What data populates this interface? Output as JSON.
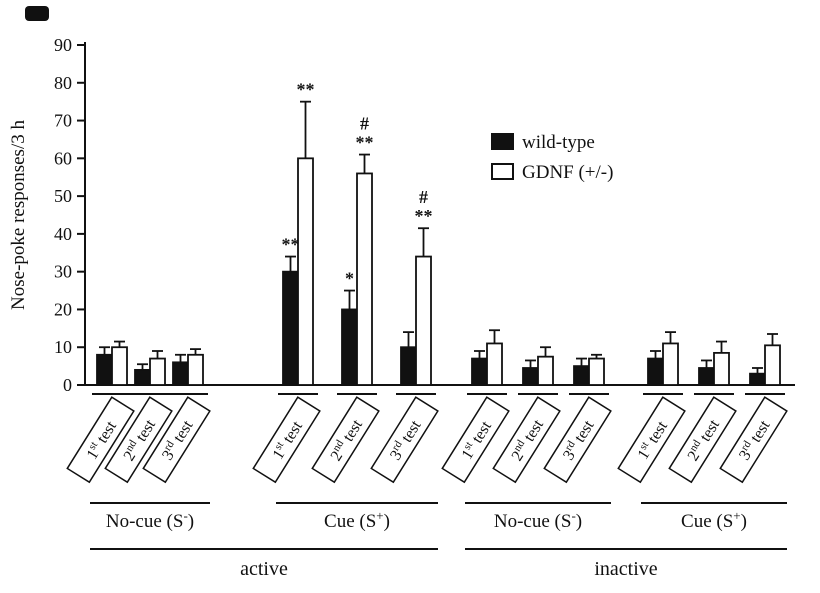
{
  "chart_data": {
    "type": "bar",
    "title": "",
    "xlabel": "",
    "ylabel": "Nose-poke responses/3 h",
    "ylim": [
      0,
      90
    ],
    "yticks": [
      0,
      10,
      20,
      30,
      40,
      50,
      60,
      70,
      80,
      90
    ],
    "grid": false,
    "legend_position": "inside-upper-middle",
    "colors": {
      "wild_type": "#111111",
      "gdnf": "#ffffff",
      "stroke": "#111111"
    },
    "legend": [
      {
        "label": "wild-type",
        "fill": "#111111"
      },
      {
        "label": "GDNF (+/-)",
        "fill": "#ffffff"
      }
    ],
    "series": [
      "wild-type",
      "GDNF (+/-)"
    ],
    "test_labels": [
      {
        "num": "1",
        "sup": "st",
        "rest": " test"
      },
      {
        "num": "2",
        "sup": "nd",
        "rest": " test"
      },
      {
        "num": "3",
        "sup": "rd",
        "rest": " test"
      }
    ],
    "sections": [
      {
        "label": "active",
        "conditions": [
          {
            "label_base": "No-cue (S",
            "label_sup": "-",
            "label_end": ")",
            "tests": [
              {
                "wt": 8,
                "wt_err": 2,
                "wt_sig": [],
                "gdnf": 10,
                "gdnf_err": 1.5,
                "gdnf_sig": []
              },
              {
                "wt": 4,
                "wt_err": 1.5,
                "wt_sig": [],
                "gdnf": 7,
                "gdnf_err": 2,
                "gdnf_sig": []
              },
              {
                "wt": 6,
                "wt_err": 2,
                "wt_sig": [],
                "gdnf": 8,
                "gdnf_err": 1.5,
                "gdnf_sig": []
              }
            ]
          },
          {
            "label_base": "Cue (S",
            "label_sup": "+",
            "label_end": ")",
            "tests": [
              {
                "wt": 30,
                "wt_err": 4,
                "wt_sig": [
                  "**"
                ],
                "gdnf": 60,
                "gdnf_err": 15,
                "gdnf_sig": [
                  "**"
                ]
              },
              {
                "wt": 20,
                "wt_err": 5,
                "wt_sig": [
                  "*"
                ],
                "gdnf": 56,
                "gdnf_err": 5,
                "gdnf_sig": [
                  "**",
                  "#"
                ]
              },
              {
                "wt": 10,
                "wt_err": 4,
                "wt_sig": [],
                "gdnf": 34,
                "gdnf_err": 7.5,
                "gdnf_sig": [
                  "**",
                  "#"
                ]
              }
            ]
          }
        ]
      },
      {
        "label": "inactive",
        "conditions": [
          {
            "label_base": "No-cue (S",
            "label_sup": "-",
            "label_end": ")",
            "tests": [
              {
                "wt": 7,
                "wt_err": 2,
                "wt_sig": [],
                "gdnf": 11,
                "gdnf_err": 3.5,
                "gdnf_sig": []
              },
              {
                "wt": 4.5,
                "wt_err": 2,
                "wt_sig": [],
                "gdnf": 7.5,
                "gdnf_err": 2.5,
                "gdnf_sig": []
              },
              {
                "wt": 5,
                "wt_err": 2,
                "wt_sig": [],
                "gdnf": 7,
                "gdnf_err": 1,
                "gdnf_sig": []
              }
            ]
          },
          {
            "label_base": "Cue (S",
            "label_sup": "+",
            "label_end": ")",
            "tests": [
              {
                "wt": 7,
                "wt_err": 2,
                "wt_sig": [],
                "gdnf": 11,
                "gdnf_err": 3,
                "gdnf_sig": []
              },
              {
                "wt": 4.5,
                "wt_err": 2,
                "wt_sig": [],
                "gdnf": 8.5,
                "gdnf_err": 3,
                "gdnf_sig": []
              },
              {
                "wt": 3,
                "wt_err": 1.5,
                "wt_sig": [],
                "gdnf": 10.5,
                "gdnf_err": 3,
                "gdnf_sig": []
              }
            ]
          }
        ]
      }
    ]
  }
}
